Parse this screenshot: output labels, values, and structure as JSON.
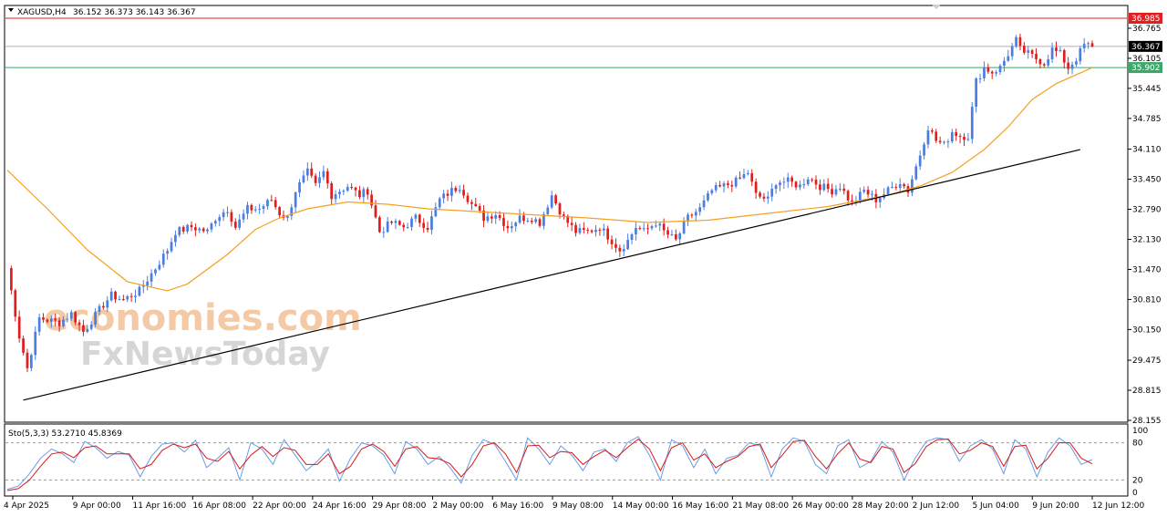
{
  "header": {
    "symbol": "XAGUSD,H4",
    "ohlc": "36.152 36.373 36.143 36.367"
  },
  "watermark": {
    "line1": "economies.com",
    "line2": "FxNewsToday"
  },
  "chart_data": [
    {
      "type": "candlestick",
      "title": "XAGUSD,H4",
      "ylim": [
        28.155,
        36.985
      ],
      "y_ticks": [
        "36.765",
        "36.105",
        "35.445",
        "34.785",
        "34.110",
        "33.450",
        "32.790",
        "32.130",
        "31.470",
        "30.810",
        "30.150",
        "29.475",
        "28.815",
        "28.155"
      ],
      "x_ticks": [
        "4 Apr 2025",
        "9 Apr 00:00",
        "11 Apr 16:00",
        "16 Apr 08:00",
        "22 Apr 00:00",
        "24 Apr 16:00",
        "29 Apr 08:00",
        "2 May 00:00",
        "6 May 16:00",
        "9 May 08:00",
        "14 May 00:00",
        "16 May 16:00",
        "21 May 08:00",
        "26 May 00:00",
        "28 May 20:00",
        "2 Jun 12:00",
        "5 Jun 04:00",
        "9 Jun 20:00",
        "12 Jun 12:00"
      ],
      "price_tags": {
        "resistance": "36.985",
        "current": "36.367",
        "support": "35.902"
      },
      "colors": {
        "bull": "#4a7ee0",
        "bear": "#e01e1e",
        "ma": "#f5a020",
        "resistance": "#e02020",
        "support": "#3aa86a",
        "current": "#b0b0b0",
        "trendline": "#000000"
      },
      "close_path": [
        [
          0,
          31.5
        ],
        [
          3,
          30.0
        ],
        [
          5,
          29.3
        ],
        [
          8,
          30.4
        ],
        [
          13,
          30.3
        ],
        [
          16,
          30.5
        ],
        [
          19,
          30.1
        ],
        [
          24,
          30.7
        ],
        [
          26,
          30.9
        ],
        [
          29,
          30.8
        ],
        [
          33,
          31.0
        ],
        [
          37,
          31.5
        ],
        [
          40,
          31.9
        ],
        [
          42,
          32.3
        ],
        [
          46,
          32.4
        ],
        [
          50,
          32.3
        ],
        [
          52,
          32.6
        ],
        [
          55,
          32.8
        ],
        [
          57,
          32.4
        ],
        [
          60,
          32.8
        ],
        [
          63,
          32.8
        ],
        [
          66,
          33.0
        ],
        [
          68,
          32.7
        ],
        [
          70,
          32.6
        ],
        [
          72,
          33.2
        ],
        [
          75,
          33.6
        ],
        [
          77,
          33.3
        ],
        [
          79,
          33.6
        ],
        [
          81,
          33.1
        ],
        [
          83,
          33.2
        ],
        [
          85,
          33.3
        ],
        [
          88,
          33.1
        ],
        [
          90,
          33.2
        ],
        [
          93,
          32.3
        ],
        [
          96,
          32.5
        ],
        [
          99,
          32.4
        ],
        [
          102,
          32.6
        ],
        [
          105,
          32.4
        ],
        [
          108,
          33.0
        ],
        [
          111,
          33.2
        ],
        [
          113,
          33.3
        ],
        [
          116,
          32.9
        ],
        [
          119,
          32.6
        ],
        [
          122,
          32.7
        ],
        [
          125,
          32.4
        ],
        [
          128,
          32.6
        ],
        [
          131,
          32.6
        ],
        [
          133,
          32.5
        ],
        [
          136,
          33.1
        ],
        [
          139,
          32.6
        ],
        [
          142,
          32.3
        ],
        [
          145,
          32.3
        ],
        [
          148,
          32.4
        ],
        [
          151,
          32.1
        ],
        [
          153,
          31.9
        ],
        [
          155,
          32.1
        ],
        [
          157,
          32.4
        ],
        [
          159,
          32.3
        ],
        [
          162,
          32.5
        ],
        [
          164,
          32.3
        ],
        [
          167,
          32.1
        ],
        [
          170,
          32.6
        ],
        [
          173,
          32.8
        ],
        [
          176,
          33.2
        ],
        [
          179,
          33.3
        ],
        [
          182,
          33.4
        ],
        [
          185,
          33.6
        ],
        [
          187,
          33.1
        ],
        [
          190,
          33.0
        ],
        [
          192,
          33.4
        ],
        [
          195,
          33.4
        ],
        [
          198,
          33.3
        ],
        [
          200,
          33.5
        ],
        [
          203,
          33.3
        ],
        [
          206,
          33.2
        ],
        [
          208,
          33.3
        ],
        [
          211,
          32.9
        ],
        [
          214,
          33.2
        ],
        [
          217,
          33.0
        ],
        [
          220,
          33.2
        ],
        [
          223,
          33.4
        ],
        [
          225,
          33.2
        ],
        [
          228,
          34.0
        ],
        [
          230,
          34.6
        ],
        [
          232,
          34.3
        ],
        [
          234,
          34.2
        ],
        [
          236,
          34.5
        ],
        [
          238,
          34.4
        ],
        [
          240,
          34.4
        ],
        [
          242,
          35.6
        ],
        [
          244,
          35.9
        ],
        [
          246,
          35.8
        ],
        [
          248,
          35.9
        ],
        [
          250,
          36.2
        ],
        [
          252,
          36.5
        ],
        [
          253,
          36.3
        ],
        [
          255,
          36.2
        ],
        [
          257,
          36.1
        ],
        [
          259,
          36.0
        ],
        [
          261,
          36.3
        ],
        [
          263,
          36.2
        ],
        [
          265,
          35.9
        ],
        [
          267,
          36.1
        ],
        [
          269,
          36.4
        ],
        [
          271,
          36.37
        ]
      ],
      "ma_path": [
        [
          0,
          33.65
        ],
        [
          10,
          32.8
        ],
        [
          20,
          31.9
        ],
        [
          30,
          31.2
        ],
        [
          40,
          31.0
        ],
        [
          45,
          31.15
        ],
        [
          55,
          31.8
        ],
        [
          62,
          32.35
        ],
        [
          68,
          32.6
        ],
        [
          75,
          32.8
        ],
        [
          85,
          32.95
        ],
        [
          95,
          32.9
        ],
        [
          105,
          32.8
        ],
        [
          115,
          32.75
        ],
        [
          125,
          32.7
        ],
        [
          135,
          32.65
        ],
        [
          145,
          32.6
        ],
        [
          160,
          32.5
        ],
        [
          175,
          32.55
        ],
        [
          190,
          32.7
        ],
        [
          205,
          32.85
        ],
        [
          220,
          33.1
        ],
        [
          228,
          33.3
        ],
        [
          236,
          33.6
        ],
        [
          244,
          34.1
        ],
        [
          250,
          34.6
        ],
        [
          256,
          35.2
        ],
        [
          262,
          35.55
        ],
        [
          271,
          35.9
        ]
      ],
      "trendline": {
        "from": [
          4,
          28.6
        ],
        "to": [
          268,
          34.1
        ]
      }
    },
    {
      "type": "line",
      "title": "Sto(5,3,3) 53.2710 45.8369",
      "ylim": [
        0,
        100
      ],
      "y_ticks": [
        "100",
        "80",
        "20",
        "0"
      ],
      "levels": [
        80,
        20
      ],
      "series": [
        {
          "name": "main",
          "color": "#6b9ce6",
          "values": [
            5,
            10,
            30,
            55,
            70,
            62,
            48,
            82,
            72,
            55,
            66,
            60,
            25,
            58,
            78,
            80,
            65,
            84,
            40,
            55,
            72,
            20,
            80,
            70,
            45,
            85,
            60,
            35,
            50,
            70,
            18,
            55,
            80,
            75,
            60,
            30,
            82,
            70,
            45,
            58,
            40,
            15,
            60,
            85,
            78,
            50,
            20,
            88,
            70,
            45,
            75,
            60,
            35,
            65,
            70,
            50,
            80,
            90,
            60,
            20,
            85,
            75,
            40,
            70,
            30,
            55,
            60,
            80,
            75,
            25,
            70,
            88,
            82,
            45,
            30,
            75,
            85,
            40,
            50,
            82,
            65,
            20,
            55,
            82,
            88,
            85,
            50,
            75,
            85,
            70,
            30,
            85,
            70,
            25,
            65,
            88,
            75,
            45,
            53
          ]
        },
        {
          "name": "signal",
          "color": "#d81818",
          "values": [
            3,
            6,
            20,
            42,
            62,
            65,
            56,
            72,
            75,
            62,
            62,
            62,
            38,
            45,
            68,
            78,
            72,
            78,
            55,
            50,
            66,
            38,
            60,
            74,
            58,
            72,
            68,
            45,
            45,
            62,
            30,
            42,
            70,
            78,
            66,
            42,
            70,
            74,
            56,
            54,
            46,
            25,
            45,
            75,
            80,
            62,
            32,
            75,
            76,
            56,
            66,
            64,
            45,
            58,
            68,
            56,
            72,
            86,
            70,
            35,
            72,
            80,
            52,
            62,
            40,
            50,
            58,
            74,
            78,
            40,
            60,
            82,
            84,
            58,
            38,
            62,
            80,
            54,
            48,
            74,
            70,
            32,
            46,
            74,
            85,
            86,
            62,
            68,
            80,
            74,
            42,
            74,
            76,
            38,
            55,
            80,
            80,
            55,
            46
          ]
        }
      ]
    }
  ]
}
